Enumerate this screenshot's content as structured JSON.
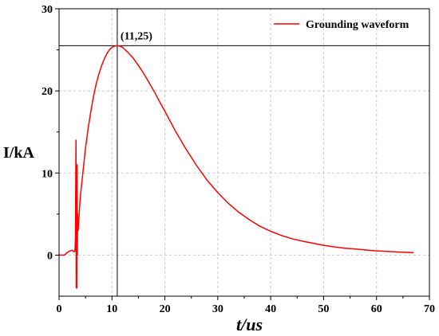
{
  "chart_data": {
    "type": "line",
    "xlabel": "t/us",
    "ylabel": "I/kA",
    "xlim": [
      0,
      70
    ],
    "ylim": [
      -5,
      30
    ],
    "xticks": [
      0,
      10,
      20,
      30,
      40,
      50,
      60,
      70
    ],
    "yticks": [
      0,
      10,
      20,
      30
    ],
    "grid": true,
    "legend_position": "top-right",
    "series": [
      {
        "name": "Grounding waveform",
        "color": "#ff0000",
        "x": [
          0,
          1,
          1.5,
          2,
          2.5,
          2.8,
          3.0,
          3.1,
          3.2,
          3.25,
          3.3,
          3.35,
          3.4,
          3.45,
          3.5,
          3.6,
          3.8,
          4,
          4.5,
          5,
          5.5,
          6,
          6.5,
          7,
          7.5,
          8,
          8.5,
          9,
          9.5,
          10,
          10.5,
          11,
          11.5,
          12,
          13,
          14,
          15,
          16,
          17,
          18,
          19,
          20,
          22,
          24,
          26,
          28,
          30,
          32,
          34,
          36,
          38,
          40,
          42,
          44,
          46,
          48,
          50,
          52,
          54,
          56,
          58,
          60,
          62,
          64,
          66,
          67
        ],
        "y": [
          0,
          0,
          0.3,
          0.5,
          0.6,
          0.4,
          0.5,
          2,
          14,
          -4,
          8,
          -4,
          11,
          0,
          5,
          3,
          5,
          7,
          10,
          13,
          15.5,
          17.5,
          19.3,
          20.8,
          22,
          23,
          23.8,
          24.5,
          25,
          25.3,
          25.45,
          25.5,
          25.45,
          25.3,
          24.7,
          24,
          23.1,
          22.1,
          21,
          19.9,
          18.7,
          17.5,
          15.1,
          12.9,
          10.9,
          9.1,
          7.6,
          6.3,
          5.2,
          4.3,
          3.5,
          2.9,
          2.4,
          2.0,
          1.7,
          1.45,
          1.2,
          1.0,
          0.85,
          0.75,
          0.62,
          0.52,
          0.45,
          0.38,
          0.33,
          0.3
        ]
      }
    ],
    "annotations": [
      {
        "label": "(11,25)",
        "x": 11,
        "y": 25.5
      }
    ]
  }
}
